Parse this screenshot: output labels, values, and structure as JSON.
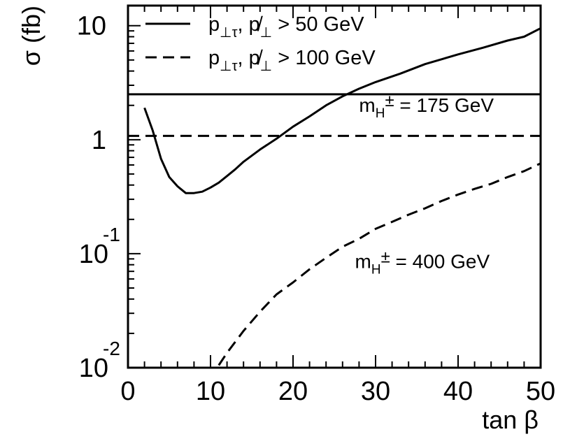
{
  "chart_data": {
    "type": "line",
    "xlabel": "tan β",
    "ylabel": "σ (fb)",
    "xlim": [
      0,
      50
    ],
    "ylim": [
      0.01,
      15
    ],
    "yscale": "log",
    "grid": false,
    "legend_position": "top-left",
    "x_ticks": [
      "0",
      "10",
      "20",
      "30",
      "40",
      "50"
    ],
    "y_ticks": [
      {
        "base": "10",
        "exp": "-2",
        "value": 0.01
      },
      {
        "base": "10",
        "exp": "-1",
        "value": 0.1
      },
      {
        "base": "1",
        "exp": "",
        "value": 1
      },
      {
        "base": "10",
        "exp": "",
        "value": 10
      }
    ],
    "legend": [
      {
        "base": "p",
        "sub": "⊥τ",
        "sep": ", ",
        "base2": "p̸",
        "sub2": "⊥",
        "rest": " > 50 GeV",
        "style": "solid"
      },
      {
        "base": "p",
        "sub": "⊥τ",
        "sep": ", ",
        "base2": "p̸",
        "sub2": "⊥",
        "rest": " > 100 GeV",
        "style": "dashed"
      }
    ],
    "annotations": [
      {
        "main": "m",
        "sub": "H",
        "sup": "±",
        "rest": " = 175 GeV",
        "x": 28,
        "y": 1.75
      },
      {
        "main": "m",
        "sub": "H",
        "sup": "±",
        "rest": " = 400 GeV",
        "x": 27.5,
        "y": 0.075
      }
    ],
    "series": [
      {
        "style": "solid",
        "mass": "175",
        "x": [
          2,
          3,
          4,
          5,
          6,
          7,
          8,
          9,
          10,
          11,
          12,
          13,
          14,
          16,
          18,
          20,
          22,
          24,
          26,
          28,
          30,
          33,
          36,
          40,
          43,
          46,
          48,
          50
        ],
        "y": [
          1.9,
          1.2,
          0.68,
          0.47,
          0.39,
          0.34,
          0.34,
          0.35,
          0.38,
          0.42,
          0.48,
          0.55,
          0.64,
          0.82,
          1.02,
          1.3,
          1.6,
          2.0,
          2.4,
          2.8,
          3.2,
          3.8,
          4.6,
          5.6,
          6.4,
          7.4,
          8.0,
          9.5
        ]
      },
      {
        "style": "solid",
        "mass": "175",
        "kind": "constant",
        "x": [
          0,
          50
        ],
        "y": [
          2.5,
          2.5
        ]
      },
      {
        "style": "dashed",
        "mass": "400",
        "x": [
          11,
          12,
          14,
          16,
          18,
          20,
          22,
          24,
          26,
          28,
          30,
          32,
          34,
          36,
          38,
          40,
          42,
          44,
          46,
          48,
          50
        ],
        "y": [
          0.0105,
          0.0135,
          0.021,
          0.031,
          0.044,
          0.056,
          0.073,
          0.092,
          0.115,
          0.135,
          0.165,
          0.19,
          0.22,
          0.25,
          0.29,
          0.33,
          0.37,
          0.41,
          0.47,
          0.53,
          0.62
        ]
      },
      {
        "style": "dashed",
        "mass": "400",
        "kind": "constant",
        "x": [
          0,
          50
        ],
        "y": [
          1.08,
          1.08
        ]
      }
    ]
  }
}
